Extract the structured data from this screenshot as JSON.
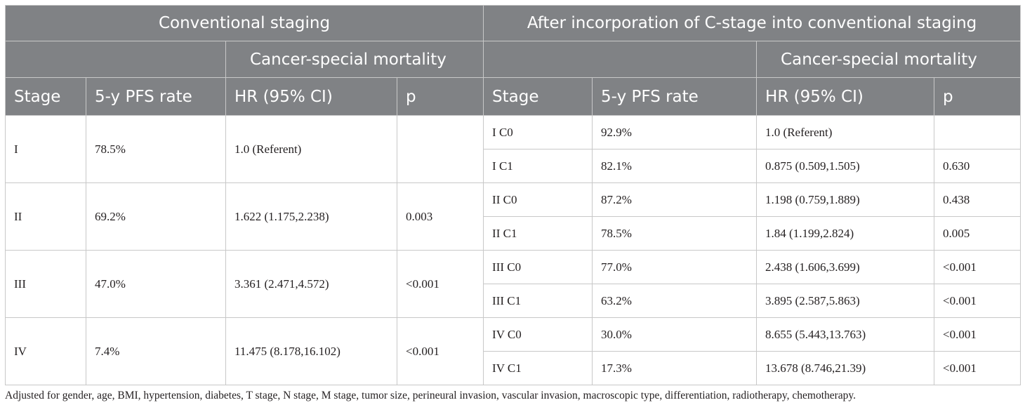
{
  "header": {
    "left_group": "Conventional staging",
    "right_group": "After incorporation of C-stage into conventional staging",
    "mortality_left": "Cancer-special mortality",
    "mortality_right": "Cancer-special mortality",
    "columns": {
      "stage": "Stage",
      "pfs": "5-y PFS rate",
      "hr": "HR (95% CI)",
      "p": "p"
    }
  },
  "conventional": [
    {
      "stage": "I",
      "pfs": "78.5%",
      "hr": "1.0 (Referent)",
      "p": ""
    },
    {
      "stage": "II",
      "pfs": "69.2%",
      "hr": "1.622 (1.175,2.238)",
      "p": "0.003"
    },
    {
      "stage": "III",
      "pfs": "47.0%",
      "hr": "3.361 (2.471,4.572)",
      "p": "<0.001"
    },
    {
      "stage": "IV",
      "pfs": "7.4%",
      "hr": "11.475 (8.178,16.102)",
      "p": "<0.001"
    }
  ],
  "c_stage": [
    {
      "stage": "I C0",
      "pfs": "92.9%",
      "hr": "1.0 (Referent)",
      "p": ""
    },
    {
      "stage": "I C1",
      "pfs": "82.1%",
      "hr": "0.875 (0.509,1.505)",
      "p": "0.630"
    },
    {
      "stage": "II C0",
      "pfs": "87.2%",
      "hr": "1.198 (0.759,1.889)",
      "p": "0.438"
    },
    {
      "stage": "II C1",
      "pfs": "78.5%",
      "hr": "1.84 (1.199,2.824)",
      "p": "0.005"
    },
    {
      "stage": "III C0",
      "pfs": "77.0%",
      "hr": "2.438 (1.606,3.699)",
      "p": "<0.001"
    },
    {
      "stage": "III C1",
      "pfs": "63.2%",
      "hr": "3.895 (2.587,5.863)",
      "p": "<0.001"
    },
    {
      "stage": "IV C0",
      "pfs": "30.0%",
      "hr": "8.655 (5.443,13.763)",
      "p": "<0.001"
    },
    {
      "stage": "IV C1",
      "pfs": "17.3%",
      "hr": "13.678 (8.746,21.39)",
      "p": "<0.001"
    }
  ],
  "footnote": "Adjusted for gender, age, BMI, hypertension, diabetes, T stage, N stage, M stage, tumor size, perineural invasion, vascular invasion, macroscopic type, differentiation, radiotherapy, chemotherapy."
}
